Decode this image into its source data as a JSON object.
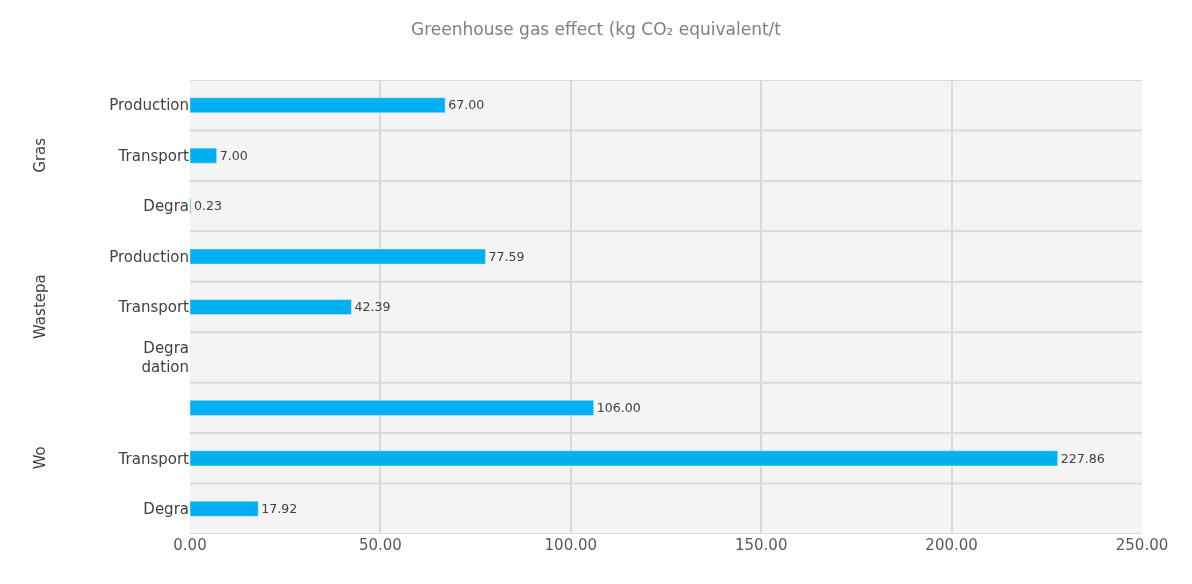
{
  "chart_data": {
    "type": "bar",
    "orientation": "horizontal",
    "title": "Greenhouse gas effect (kg CO₂ equivalent/t",
    "categories": [
      "Production",
      "Transport",
      "Degra",
      "Production",
      "Transport",
      "Degra\ndation",
      null,
      "Transport",
      "Degra"
    ],
    "values": [
      67.0,
      7.0,
      0.23,
      77.59,
      42.39,
      null,
      106.0,
      227.86,
      17.92
    ],
    "value_labels": [
      "67.00",
      "7.00",
      "0.23",
      "77.59",
      "42.39",
      null,
      "106.00",
      "227.86",
      "17.92"
    ],
    "color": "#00b0f0",
    "xlim": [
      0,
      250
    ],
    "xticks": [
      {
        "value": 0,
        "label": "0.00"
      },
      {
        "value": 50,
        "label": "50.00"
      },
      {
        "value": 100,
        "label": "100.00"
      },
      {
        "value": 150,
        "label": "150.00"
      },
      {
        "value": 200,
        "label": "200.00"
      },
      {
        "value": 250,
        "label": "250.00"
      }
    ],
    "grid": true,
    "annotations": [
      "Gras",
      "Wastepa",
      "Wo"
    ]
  }
}
